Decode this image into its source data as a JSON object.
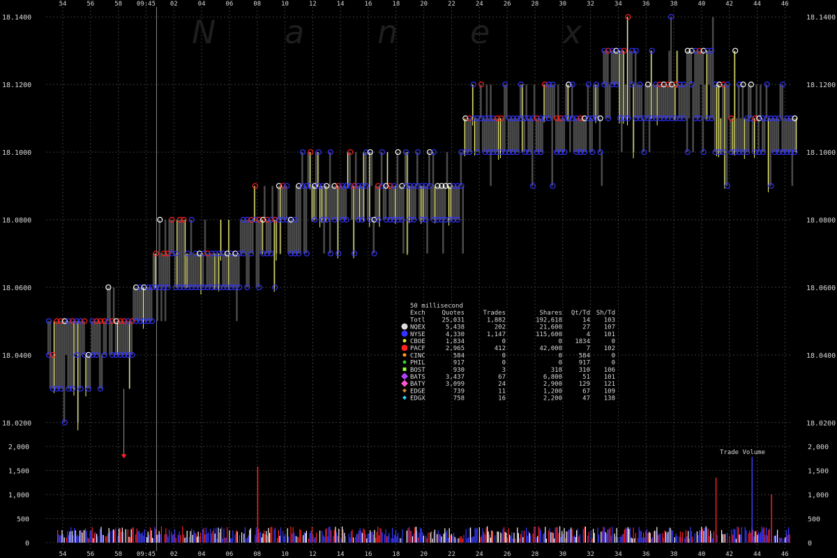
{
  "watermark": [
    "N",
    "a",
    "n",
    "e",
    "x"
  ],
  "colors": {
    "background": "#000000",
    "grid": "#3a3a3a",
    "spread_fill": "#4a4a4a",
    "quote_outline": "#3333ff",
    "trade_line": "#ffff66",
    "volume_blue": "#3b3bff",
    "volume_red": "#ff2020",
    "volume_white": "#ffffff"
  },
  "x_axis": {
    "ticks": [
      "54",
      "56",
      "58",
      "09:45",
      "02",
      "04",
      "06",
      "08",
      "10",
      "12",
      "14",
      "16",
      "18",
      "20",
      "22",
      "24",
      "26",
      "28",
      "30",
      "32",
      "34",
      "36",
      "38",
      "40",
      "42",
      "44",
      "46"
    ]
  },
  "chart_data": [
    {
      "type": "line",
      "name": "price",
      "ylim": [
        18.015,
        18.145
      ],
      "y_ticks": [
        "18.0200",
        "18.0400",
        "18.0600",
        "18.0800",
        "18.1000",
        "18.1200",
        "18.1400"
      ],
      "y_tick_values": [
        18.02,
        18.04,
        18.06,
        18.08,
        18.1,
        18.12,
        18.14
      ],
      "quote_levels": {
        "x_minute_index": [
          0,
          1,
          2,
          3,
          4,
          5,
          6,
          7,
          8,
          9,
          10,
          11,
          12,
          13,
          14,
          15,
          16,
          17,
          18,
          19,
          20,
          21,
          22,
          23,
          24,
          25,
          26
        ],
        "bid": [
          18.03,
          18.03,
          18.04,
          18.05,
          18.06,
          18.06,
          18.06,
          18.07,
          18.07,
          18.08,
          18.08,
          18.08,
          18.08,
          18.08,
          18.08,
          18.1,
          18.1,
          18.1,
          18.1,
          18.1,
          18.11,
          18.11,
          18.11,
          18.11,
          18.1,
          18.1,
          18.1
        ],
        "ask": [
          18.05,
          18.05,
          18.05,
          18.06,
          18.08,
          18.07,
          18.07,
          18.08,
          18.08,
          18.09,
          18.09,
          18.09,
          18.09,
          18.09,
          18.09,
          18.11,
          18.11,
          18.11,
          18.11,
          18.11,
          18.13,
          18.12,
          18.12,
          18.13,
          18.12,
          18.11,
          18.11
        ]
      },
      "extremes": {
        "high": 18.14,
        "low": 18.01
      }
    },
    {
      "type": "table",
      "name": "exchange-stats",
      "title": "50 millisecond",
      "columns": [
        "Exch",
        "Quotes",
        "Trades",
        "Shares",
        "Qt/Td",
        "Sh/Td"
      ],
      "rows": [
        {
          "exch": "Totl",
          "quotes": "25,031",
          "trades": "1,882",
          "shares": "192,618",
          "qt_td": "14",
          "sh_td": "103",
          "marker": "none",
          "color": "#d9d9d9"
        },
        {
          "exch": "NQEX",
          "quotes": "5,438",
          "trades": "202",
          "shares": "21,600",
          "qt_td": "27",
          "sh_td": "107",
          "marker": "circle",
          "color": "#dcdcdc"
        },
        {
          "exch": "NYSE",
          "quotes": "4,330",
          "trades": "1,147",
          "shares": "115,600",
          "qt_td": "4",
          "sh_td": "101",
          "marker": "circle",
          "color": "#3333ff"
        },
        {
          "exch": "CBOE",
          "quotes": "1,834",
          "trades": "0",
          "shares": "0",
          "qt_td": "1834",
          "sh_td": "0",
          "marker": "circle-small",
          "color": "#e6e633"
        },
        {
          "exch": "PACF",
          "quotes": "2,965",
          "trades": "412",
          "shares": "42,000",
          "qt_td": "7",
          "sh_td": "102",
          "marker": "circle",
          "color": "#ff2020"
        },
        {
          "exch": "CINC",
          "quotes": "584",
          "trades": "0",
          "shares": "0",
          "qt_td": "584",
          "sh_td": "0",
          "marker": "circle-small",
          "color": "#ff9a1a"
        },
        {
          "exch": "PHIL",
          "quotes": "917",
          "trades": "0",
          "shares": "0",
          "qt_td": "917",
          "sh_td": "0",
          "marker": "circle-small",
          "color": "#33cc33"
        },
        {
          "exch": "BOST",
          "quotes": "930",
          "trades": "3",
          "shares": "318",
          "qt_td": "310",
          "sh_td": "106",
          "marker": "square",
          "color": "#99ff33"
        },
        {
          "exch": "BATS",
          "quotes": "3,437",
          "trades": "67",
          "shares": "6,800",
          "qt_td": "51",
          "sh_td": "101",
          "marker": "diamond",
          "color": "#b040ff"
        },
        {
          "exch": "BATY",
          "quotes": "3,099",
          "trades": "24",
          "shares": "2,900",
          "qt_td": "129",
          "sh_td": "121",
          "marker": "diamond",
          "color": "#ff55cc"
        },
        {
          "exch": "EDGE",
          "quotes": "739",
          "trades": "11",
          "shares": "1,200",
          "qt_td": "67",
          "sh_td": "109",
          "marker": "diamond-small",
          "color": "#cc8833"
        },
        {
          "exch": "EDGX",
          "quotes": "758",
          "trades": "16",
          "shares": "2,200",
          "qt_td": "47",
          "sh_td": "138",
          "marker": "diamond-small",
          "color": "#33ccff"
        }
      ]
    },
    {
      "type": "bar",
      "name": "trade-volume",
      "title": "Trade Volume",
      "ylim": [
        0,
        2000
      ],
      "y_ticks": [
        "0",
        "500",
        "1,000",
        "1,500",
        "2,000"
      ],
      "y_tick_values": [
        0,
        500,
        1000,
        1500,
        2000
      ],
      "peaks": [
        {
          "minute_index": 7.0,
          "value": 1580,
          "color": "red"
        },
        {
          "minute_index": 12.7,
          "value": 330,
          "color": "white"
        },
        {
          "minute_index": 23.5,
          "value": 1350,
          "color": "red"
        },
        {
          "minute_index": 24.8,
          "value": 1780,
          "color": "blue"
        },
        {
          "minute_index": 25.5,
          "value": 1000,
          "color": "red"
        }
      ]
    }
  ]
}
